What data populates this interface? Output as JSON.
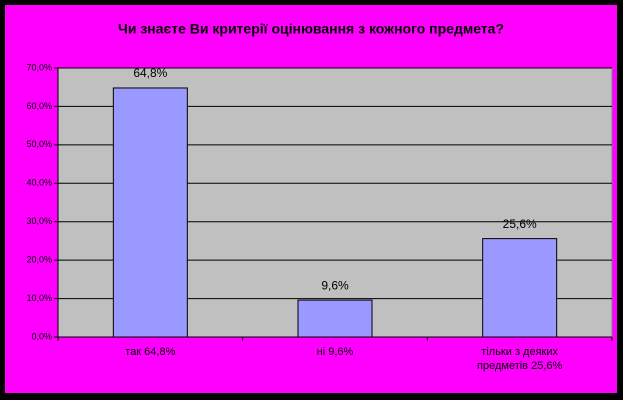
{
  "chart_data": {
    "type": "bar",
    "title": "Чи знаєте Ви критерії оцінювання з кожного предмета?",
    "categories": [
      "так 64,8%",
      "ні 9,6%",
      "тільки з деяких предметів 25,6%"
    ],
    "values": [
      64.8,
      9.6,
      25.6
    ],
    "value_labels": [
      "64,8%",
      "9,6%",
      "25,6%"
    ],
    "color": "#9999ff",
    "ylim": [
      0,
      70
    ],
    "yticks": [
      {
        "value": 0,
        "label": "0,0%"
      },
      {
        "value": 10,
        "label": "10,0%"
      },
      {
        "value": 20,
        "label": "20,0%"
      },
      {
        "value": 30,
        "label": "30,0%"
      },
      {
        "value": 40,
        "label": "40,0%"
      },
      {
        "value": 50,
        "label": "50,0%"
      },
      {
        "value": 60,
        "label": "60,0%"
      },
      {
        "value": 70,
        "label": "70,0%"
      }
    ],
    "grid": true
  }
}
